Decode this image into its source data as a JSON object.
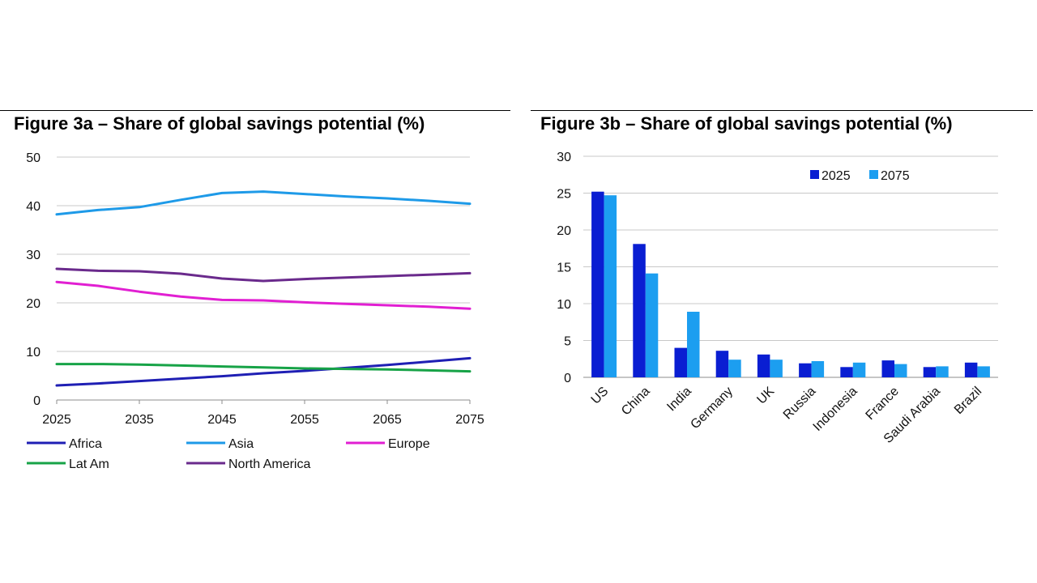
{
  "chart_data": [
    {
      "type": "line",
      "title": "Figure 3a – Share of global savings potential (%)",
      "x": [
        2025,
        2030,
        2035,
        2040,
        2045,
        2050,
        2055,
        2060,
        2065,
        2070,
        2075
      ],
      "x_ticks": [
        "2025",
        "2035",
        "2045",
        "2055",
        "2065",
        "2075"
      ],
      "xlim": [
        2025,
        2075
      ],
      "y_ticks": [
        "0",
        "10",
        "20",
        "30",
        "40",
        "50"
      ],
      "ylim": [
        0,
        50
      ],
      "grid": "horizontal",
      "legend_position": "bottom",
      "series": [
        {
          "name": "Africa",
          "color": "#1f1fb4",
          "values": [
            3.0,
            3.4,
            3.9,
            4.4,
            4.9,
            5.5,
            6.0,
            6.6,
            7.2,
            7.9,
            8.6
          ]
        },
        {
          "name": "Asia",
          "color": "#1e9ae8",
          "values": [
            38.2,
            39.1,
            39.7,
            41.2,
            42.6,
            42.9,
            42.4,
            41.9,
            41.5,
            41.0,
            40.4
          ]
        },
        {
          "name": "Europe",
          "color": "#e11fd2",
          "values": [
            24.3,
            23.5,
            22.3,
            21.3,
            20.6,
            20.5,
            20.1,
            19.8,
            19.5,
            19.2,
            18.8
          ]
        },
        {
          "name": "Lat Am",
          "color": "#17a347",
          "values": [
            7.4,
            7.4,
            7.3,
            7.1,
            6.9,
            6.7,
            6.5,
            6.4,
            6.3,
            6.1,
            5.9
          ]
        },
        {
          "name": "North America",
          "color": "#6a2a8c",
          "values": [
            27.0,
            26.6,
            26.5,
            26.0,
            25.0,
            24.5,
            24.9,
            25.2,
            25.5,
            25.8,
            26.1
          ]
        }
      ]
    },
    {
      "type": "bar",
      "title": "Figure 3b – Share of global savings potential (%)",
      "categories": [
        "US",
        "China",
        "India",
        "Germany",
        "UK",
        "Russia",
        "Indonesia",
        "France",
        "Saudi Arabia",
        "Brazil"
      ],
      "y_ticks": [
        "0",
        "5",
        "10",
        "15",
        "20",
        "25",
        "30"
      ],
      "ylim": [
        0,
        30
      ],
      "grid": "horizontal",
      "legend_position": "top-right",
      "series": [
        {
          "name": "2025",
          "color": "#0a1ed2",
          "values": [
            25.2,
            18.1,
            4.0,
            3.6,
            3.1,
            1.9,
            1.4,
            2.3,
            1.4,
            2.0
          ]
        },
        {
          "name": "2075",
          "color": "#1c9ef0",
          "values": [
            24.7,
            14.1,
            8.9,
            2.4,
            2.4,
            2.2,
            2.0,
            1.8,
            1.5,
            1.5
          ]
        }
      ]
    }
  ]
}
